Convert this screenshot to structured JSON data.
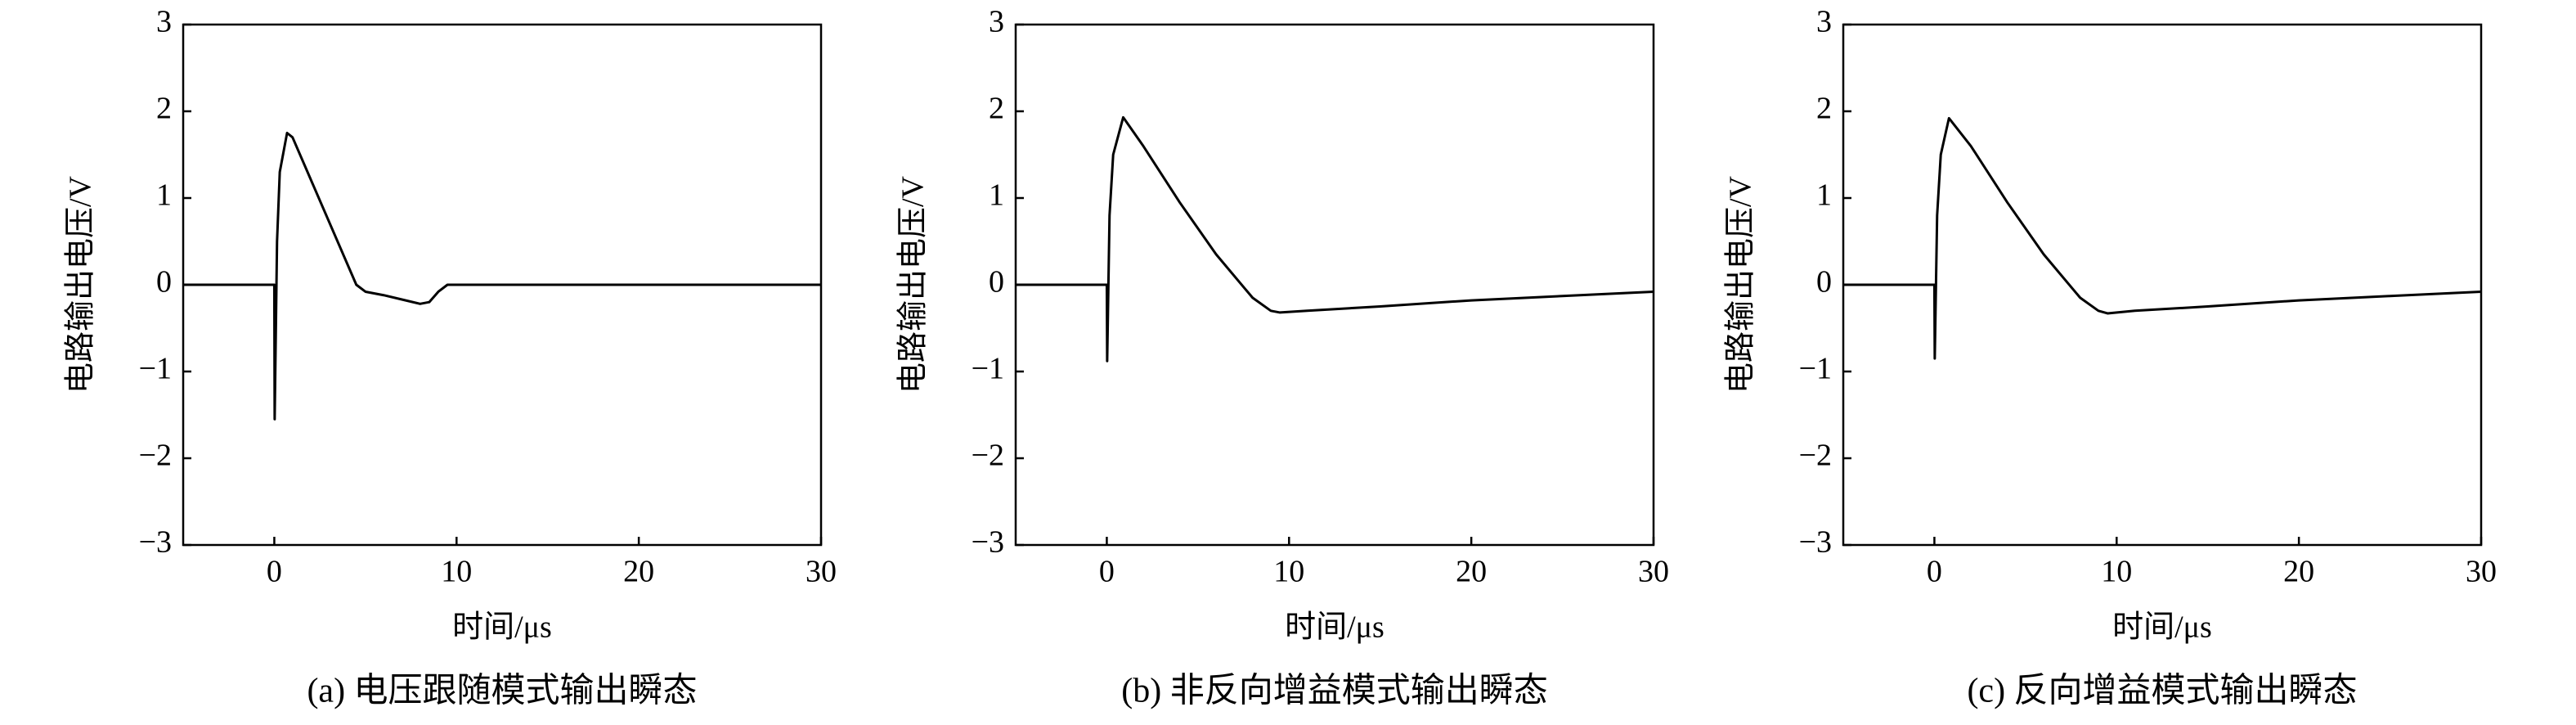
{
  "chart_data": [
    {
      "type": "line",
      "caption": "(a) 电压跟随模式输出瞬态",
      "x_label": "时间/μs",
      "y_label": "电路输出电压/V",
      "xlim": [
        -5,
        30
      ],
      "xticks": [
        0,
        10,
        20,
        30
      ],
      "ylim": [
        -3,
        3
      ],
      "yticks": [
        {
          "value": -3,
          "label": "−3"
        },
        {
          "value": -2,
          "label": "−2"
        },
        {
          "value": -1,
          "label": "−1"
        },
        0,
        1,
        2,
        3
      ],
      "grid": false,
      "series": [
        {
          "color": "#000000",
          "x": [
            -5,
            0,
            0.02,
            0.15,
            0.3,
            0.7,
            1.0,
            4.5,
            5,
            6,
            7,
            8,
            8.5,
            9,
            9.5,
            10,
            30
          ],
          "values": [
            0,
            0,
            -1.55,
            0.5,
            1.3,
            1.75,
            1.7,
            0,
            -0.08,
            -0.12,
            -0.17,
            -0.22,
            -0.2,
            -0.08,
            0,
            0,
            0
          ]
        }
      ]
    },
    {
      "type": "line",
      "caption": "(b) 非反向增益模式输出瞬态",
      "x_label": "时间/μs",
      "y_label": "电路输出电压/V",
      "xlim": [
        -5,
        30
      ],
      "xticks": [
        0,
        10,
        20,
        30
      ],
      "ylim": [
        -3,
        3
      ],
      "yticks": [
        {
          "value": -3,
          "label": "−3"
        },
        {
          "value": -2,
          "label": "−2"
        },
        {
          "value": -1,
          "label": "−1"
        },
        0,
        1,
        2,
        3
      ],
      "grid": false,
      "series": [
        {
          "color": "#000000",
          "x": [
            -5,
            0,
            0.02,
            0.15,
            0.35,
            0.9,
            2,
            4,
            6,
            8,
            9,
            9.5,
            11,
            15,
            20,
            25,
            30
          ],
          "values": [
            0,
            0,
            -0.88,
            0.8,
            1.5,
            1.93,
            1.6,
            0.95,
            0.35,
            -0.15,
            -0.3,
            -0.32,
            -0.3,
            -0.25,
            -0.18,
            -0.13,
            -0.08
          ]
        }
      ]
    },
    {
      "type": "line",
      "caption": "(c) 反向增益模式输出瞬态",
      "x_label": "时间/μs",
      "y_label": "电路输出电压/V",
      "xlim": [
        -5,
        30
      ],
      "xticks": [
        0,
        10,
        20,
        30
      ],
      "ylim": [
        -3,
        3
      ],
      "yticks": [
        {
          "value": -3,
          "label": "−3"
        },
        {
          "value": -2,
          "label": "−2"
        },
        {
          "value": -1,
          "label": "−1"
        },
        0,
        1,
        2,
        3
      ],
      "grid": false,
      "series": [
        {
          "color": "#000000",
          "x": [
            -5,
            0,
            0.02,
            0.15,
            0.35,
            0.8,
            2,
            4,
            6,
            8,
            9,
            9.5,
            11,
            15,
            20,
            25,
            30
          ],
          "values": [
            0,
            0,
            -0.85,
            0.8,
            1.5,
            1.92,
            1.6,
            0.95,
            0.35,
            -0.15,
            -0.3,
            -0.33,
            -0.3,
            -0.25,
            -0.18,
            -0.13,
            -0.08
          ]
        }
      ]
    }
  ]
}
